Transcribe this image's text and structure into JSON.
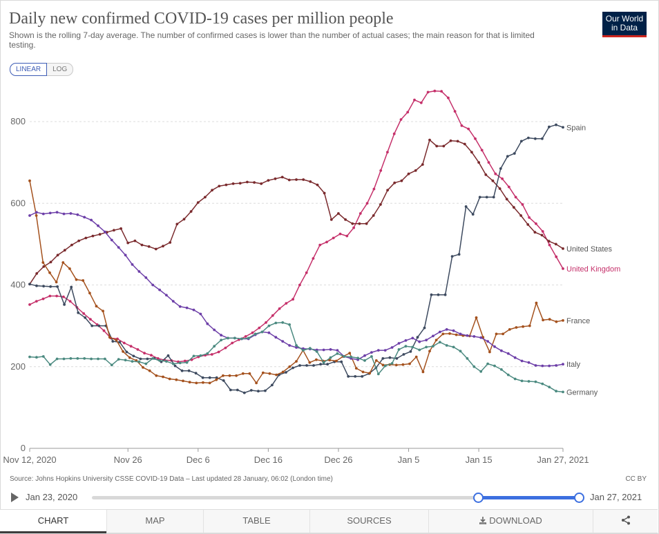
{
  "header": {
    "title": "Daily new confirmed COVID-19 cases per million people",
    "subtitle": "Shown is the rolling 7-day average. The number of confirmed cases is lower than the number of actual cases; the main reason for that is limited testing.",
    "logo_line1": "Our World",
    "logo_line2": "in Data"
  },
  "controls": {
    "linear_label": "LINEAR",
    "log_label": "LOG"
  },
  "colors": {
    "Spain": "#3d4a5f",
    "United States": "#7a2a2d",
    "United Kingdom": "#c5306a",
    "France": "#a4511d",
    "Italy": "#6d3fa8",
    "Germany": "#4b8a80"
  },
  "chart_data": {
    "type": "line",
    "title": "Daily new confirmed COVID-19 cases per million people",
    "xlabel": "",
    "ylabel": "",
    "ylim": [
      0,
      900
    ],
    "x_start": "2020-11-12",
    "x_end": "2021-01-27",
    "x_ticks": [
      {
        "label": "Nov 12, 2020",
        "day": 0
      },
      {
        "label": "Nov 26",
        "day": 14
      },
      {
        "label": "Dec 6",
        "day": 24
      },
      {
        "label": "Dec 16",
        "day": 34
      },
      {
        "label": "Dec 26",
        "day": 44
      },
      {
        "label": "Jan 5",
        "day": 54
      },
      {
        "label": "Jan 15",
        "day": 64
      },
      {
        "label": "Jan 27, 2021",
        "day": 76
      }
    ],
    "y_ticks": [
      0,
      200,
      400,
      600,
      800
    ],
    "series": [
      {
        "name": "United Kingdom",
        "values": [
          352,
          360,
          366,
          373,
          373,
          371,
          360,
          345,
          330,
          316,
          303,
          288,
          270,
          268,
          258,
          250,
          242,
          233,
          228,
          220,
          216,
          215,
          212,
          214,
          217,
          224,
          228,
          230,
          236,
          246,
          258,
          266,
          274,
          283,
          295,
          308,
          325,
          342,
          355,
          365,
          400,
          430,
          465,
          498,
          505,
          515,
          525,
          520,
          540,
          575,
          600,
          635,
          680,
          725,
          770,
          805,
          823,
          853,
          846,
          872,
          875,
          874,
          858,
          825,
          790,
          782,
          758,
          730,
          700,
          672,
          660,
          640,
          615,
          597,
          565,
          550,
          531,
          498,
          469,
          440
        ]
      },
      {
        "name": "United States",
        "values": [
          402,
          428,
          445,
          456,
          473,
          485,
          498,
          508,
          515,
          520,
          524,
          529,
          534,
          538,
          503,
          508,
          498,
          494,
          488,
          495,
          504,
          549,
          561,
          580,
          602,
          615,
          632,
          642,
          645,
          648,
          649,
          652,
          651,
          648,
          656,
          660,
          664,
          657,
          658,
          658,
          653,
          645,
          625,
          560,
          575,
          560,
          550,
          550,
          550,
          570,
          597,
          632,
          650,
          655,
          672,
          680,
          695,
          755,
          740,
          740,
          753,
          752,
          745,
          725,
          700,
          670,
          655,
          636,
          610,
          590,
          570,
          548,
          529,
          522,
          507,
          500,
          489
        ]
      },
      {
        "name": "Spain",
        "values": [
          402,
          398,
          397,
          396,
          396,
          352,
          395,
          332,
          320,
          300,
          300,
          300,
          262,
          260,
          236,
          226,
          219,
          219,
          220,
          212,
          227,
          202,
          190,
          190,
          184,
          173,
          173,
          173,
          166,
          143,
          143,
          136,
          142,
          140,
          141,
          155,
          180,
          186,
          197,
          203,
          203,
          203,
          206,
          206,
          212,
          212,
          176,
          176,
          176,
          183,
          197,
          220,
          222,
          220,
          230,
          237,
          272,
          295,
          376,
          376,
          376,
          470,
          475,
          592,
          573,
          615,
          615,
          615,
          685,
          715,
          722,
          752,
          760,
          758,
          758,
          787,
          792,
          786
        ]
      },
      {
        "name": "France",
        "values": [
          655,
          570,
          455,
          430,
          407,
          455,
          440,
          413,
          411,
          380,
          348,
          336,
          272,
          265,
          237,
          222,
          215,
          198,
          190,
          178,
          175,
          170,
          168,
          165,
          162,
          160,
          161,
          160,
          168,
          178,
          178,
          178,
          183,
          183,
          160,
          185,
          183,
          180,
          187,
          200,
          213,
          240,
          210,
          217,
          214,
          216,
          214,
          225,
          233,
          196,
          187,
          184,
          215,
          204,
          205,
          204,
          205,
          207,
          224,
          187,
          238,
          265,
          280,
          281,
          278,
          276,
          275,
          320,
          272,
          236,
          280,
          280,
          291,
          296,
          298,
          300,
          356,
          314,
          316,
          310,
          313
        ]
      },
      {
        "name": "Italy",
        "values": [
          570,
          578,
          574,
          576,
          578,
          574,
          575,
          572,
          566,
          559,
          545,
          530,
          510,
          492,
          473,
          450,
          433,
          418,
          400,
          388,
          375,
          360,
          347,
          344,
          339,
          329,
          305,
          290,
          277,
          270,
          270,
          268,
          268,
          278,
          285,
          283,
          272,
          262,
          252,
          247,
          244,
          243,
          241,
          241,
          242,
          240,
          225,
          220,
          217,
          227,
          235,
          240,
          240,
          247,
          257,
          264,
          270,
          261,
          265,
          275,
          285,
          291,
          288,
          280,
          276,
          274,
          271,
          262,
          249,
          239,
          232,
          222,
          214,
          210,
          203,
          202,
          202,
          203,
          206
        ]
      },
      {
        "name": "Germany",
        "values": [
          224,
          223,
          225,
          205,
          219,
          219,
          220,
          220,
          220,
          219,
          219,
          219,
          204,
          218,
          216,
          213,
          212,
          207,
          220,
          215,
          213,
          207,
          209,
          210,
          226,
          227,
          232,
          250,
          265,
          270,
          270,
          268,
          270,
          280,
          285,
          300,
          307,
          308,
          303,
          252,
          240,
          245,
          237,
          210,
          222,
          232,
          225,
          224,
          221,
          215,
          225,
          182,
          202,
          208,
          242,
          250,
          248,
          241,
          248,
          250,
          260,
          252,
          248,
          238,
          220,
          200,
          188,
          207,
          202,
          193,
          180,
          170,
          165,
          164,
          163,
          158,
          150,
          140,
          138
        ]
      }
    ]
  },
  "footer": {
    "source": "Source: Johns Hopkins University CSSE COVID-19 Data – Last updated 28 January, 06:02 (London time)",
    "license": "CC BY",
    "timeline_start": "Jan 23, 2020",
    "timeline_end": "Jan 27, 2021"
  },
  "tabs": [
    {
      "label": "CHART"
    },
    {
      "label": "MAP"
    },
    {
      "label": "TABLE"
    },
    {
      "label": "SOURCES"
    },
    {
      "label": "DOWNLOAD"
    }
  ]
}
